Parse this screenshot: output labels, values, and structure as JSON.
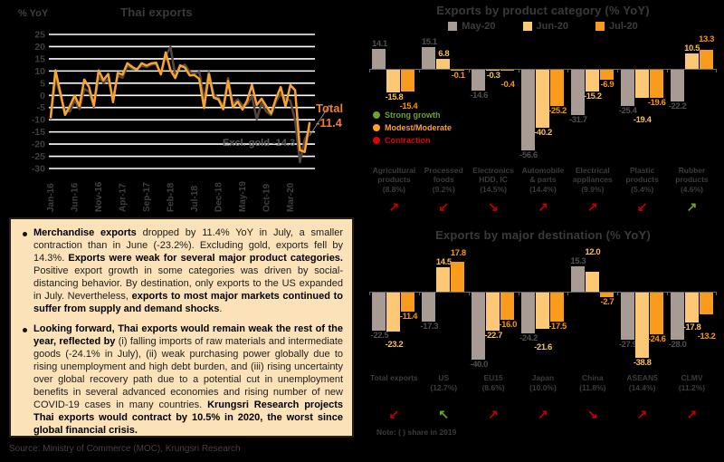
{
  "source": "Source: Ministry of Commerce (MOC), Krungsri Research",
  "chart_data": [
    {
      "type": "line",
      "title": "Thai exports",
      "ylabel": "% YoY",
      "ylim": [
        -30,
        25
      ],
      "ytick_step": 5,
      "grid": true,
      "x_tick_labels": [
        "Jan-16",
        "Jun-16",
        "Nov-16",
        "Apr-17",
        "Sep-17",
        "Feb-18",
        "Jul-18",
        "Dec-18",
        "May-19",
        "Oct-19",
        "Mar-20"
      ],
      "x_tick_indices": [
        0,
        5,
        10,
        15,
        20,
        25,
        30,
        35,
        40,
        45,
        50
      ],
      "series": [
        {
          "name": "Excl. gold",
          "color": "#57473F",
          "label_lines": [
            "Excl. gold -14.3"
          ],
          "values": [
            -9.5,
            7.0,
            0.2,
            -6.3,
            -6.6,
            -2.0,
            -5.6,
            2.6,
            1.6,
            -4.6,
            7.6,
            5.1,
            6.6,
            -1.0,
            8.1,
            7.2,
            12.1,
            11.0,
            10.9,
            12.1,
            11.6,
            12.6,
            12.9,
            9.1,
            16.2,
            19.8,
            8.0,
            11.6,
            12.6,
            9.6,
            9.1,
            9.6,
            -1.6,
            9.6,
            0.4,
            -1.1,
            -4.6,
            7.1,
            -3.6,
            -1.6,
            -4.1,
            -3.6,
            -0.4,
            -9.8,
            -3.1,
            -6.6,
            -8.1,
            -2.6,
            0.6,
            -1.2,
            -2.2,
            -10.3,
            -27.4,
            -18.1,
            -14.3
          ]
        },
        {
          "name": "Total",
          "color": "#F9A42C",
          "label_lines": [
            "Total",
            "-11.4"
          ],
          "values": [
            -8.9,
            10.3,
            1.3,
            -8.0,
            -4.4,
            -0.1,
            -4.4,
            6.5,
            3.4,
            -4.2,
            10.2,
            6.2,
            8.8,
            -2.8,
            9.2,
            8.5,
            13.2,
            11.7,
            10.5,
            13.2,
            12.2,
            13.1,
            13.4,
            8.6,
            17.6,
            10.3,
            7.1,
            12.3,
            11.4,
            8.2,
            8.3,
            6.7,
            -5.2,
            8.7,
            -0.9,
            -1.7,
            -5.7,
            5.9,
            -4.9,
            -2.6,
            -5.8,
            -2.1,
            4.3,
            -4.0,
            -1.4,
            -4.5,
            -7.4,
            -1.3,
            3.4,
            -4.5,
            4.2,
            2.1,
            -22.5,
            -23.2,
            -11.4
          ]
        }
      ]
    },
    {
      "type": "bar",
      "title": "Exports by product category (% YoY)",
      "legend": [
        "May-20",
        "Jun-20",
        "Jul-20"
      ],
      "series_colors": [
        "#A89B93",
        "#FDC875",
        "#F99B1C"
      ],
      "label_colors": [
        "#4f4f4f",
        "#FCBE5C",
        "#F8960B"
      ],
      "status_legend": [
        {
          "label": "Strong growth",
          "color": "#6FA22E"
        },
        {
          "label": "Modest/Moderate",
          "color": "#FFA021"
        },
        {
          "label": "Contraction",
          "color": "#E10000"
        }
      ],
      "categories": [
        {
          "name": "Agricultural products",
          "share": "(8.8%)",
          "arrow": "up",
          "arrow_color": "red"
        },
        {
          "name": "Processed foods",
          "share": "(9.2%)",
          "arrow": "down-left",
          "arrow_color": "red"
        },
        {
          "name": "Electronics HDD, IC",
          "share": "(14.5%)",
          "arrow": "down-right",
          "arrow_color": "red"
        },
        {
          "name": "Automobile & parts",
          "share": "(14.4%)",
          "arrow": "up",
          "arrow_color": "red"
        },
        {
          "name": "Electrical appliances",
          "share": "(9.9%)",
          "arrow": "up",
          "arrow_color": "red"
        },
        {
          "name": "Plastic products",
          "share": "(5.4%)",
          "arrow": "down-left",
          "arrow_color": "red"
        },
        {
          "name": "Rubber products",
          "share": "(4.6%)",
          "arrow": "up",
          "arrow_color": "green"
        }
      ],
      "series": [
        {
          "name": "May-20",
          "values": [
            14.1,
            15.1,
            -14.6,
            -56.6,
            -31.7,
            -25.4,
            -22.2
          ]
        },
        {
          "name": "Jun-20",
          "values": [
            -15.8,
            6.8,
            -0.3,
            -40.2,
            -15.2,
            -19.4,
            10.5
          ]
        },
        {
          "name": "Jul-20",
          "values": [
            -15.4,
            -0.1,
            -0.4,
            -25.2,
            -6.9,
            -19.6,
            13.3
          ]
        }
      ]
    },
    {
      "type": "bar",
      "title": "Exports by major destination (% YoY)",
      "legend": [
        "May-20",
        "Jun-20",
        "Jul-20"
      ],
      "series_colors": [
        "#A89B93",
        "#FDC875",
        "#F99B1C"
      ],
      "label_colors": [
        "#4f4f4f",
        "#FCBE5C",
        "#F8960B"
      ],
      "note": "Note: (  ) share in 2019",
      "categories": [
        {
          "name": "Total exports",
          "share": "",
          "arrow": "down-left",
          "arrow_color": "red"
        },
        {
          "name": "US",
          "share": "(12.7%)",
          "arrow": "up-left",
          "arrow_color": "green"
        },
        {
          "name": "EU15",
          "share": "(8.6%)",
          "arrow": "up",
          "arrow_color": "red"
        },
        {
          "name": "Japan",
          "share": "(10.0%)",
          "arrow": "up",
          "arrow_color": "red"
        },
        {
          "name": "China",
          "share": "(11.8%)",
          "arrow": "down-right",
          "arrow_color": "red"
        },
        {
          "name": "ASEAN5",
          "share": "(14.4%)",
          "arrow": "up",
          "arrow_color": "red"
        },
        {
          "name": "CLMV",
          "share": "(11.2%)",
          "arrow": "up",
          "arrow_color": "red"
        }
      ],
      "series": [
        {
          "name": "May-20",
          "values": [
            -22.5,
            -17.3,
            -40.0,
            -24.2,
            15.3,
            -27.9,
            -28.0
          ]
        },
        {
          "name": "Jun-20",
          "values": [
            -23.2,
            14.5,
            -22.7,
            -21.6,
            12.0,
            -38.8,
            -17.8
          ]
        },
        {
          "name": "Jul-20",
          "values": [
            -11.4,
            17.8,
            -16.0,
            -17.5,
            -2.7,
            -24.6,
            -13.2
          ]
        }
      ]
    }
  ],
  "insight_box": {
    "bullets": [
      {
        "segments": [
          {
            "t": "Merchandise exports",
            "b": true
          },
          {
            "t": " dropped by 11.4% YoY in July, a smaller contraction than in June (-23.2%). Excluding gold, exports fell by 14.3%. ",
            "b": false
          },
          {
            "t": "Exports were weak for several major product categories.",
            "b": true
          },
          {
            "t": " Positive export growth in some categories was driven by social-distancing behavior. By destination, only exports to the US expanded in July. Nevertheless, ",
            "b": false
          },
          {
            "t": "exports to most major markets continued to suffer from supply and demand shocks",
            "b": true
          },
          {
            "t": ".",
            "b": false
          }
        ]
      },
      {
        "segments": [
          {
            "t": "Looking forward, Thai exports would remain weak the rest of the year, reflected by",
            "b": true
          },
          {
            "t": " (i) falling imports of raw materials and intermediate goods (-24.1% in July), (ii) weak purchasing power globally due to rising unemployment and high debt burden, and (iii) rising uncertainty over global recovery path due to a potential cut in unemployment benefits in several advanced economies and rising number of new COVID-19 cases in many countries. ",
            "b": false
          },
          {
            "t": "Krungsri Research projects Thai exports would contract by 10.5% in 2020, the worst since global financial crisis.",
            "b": true
          }
        ]
      }
    ]
  }
}
